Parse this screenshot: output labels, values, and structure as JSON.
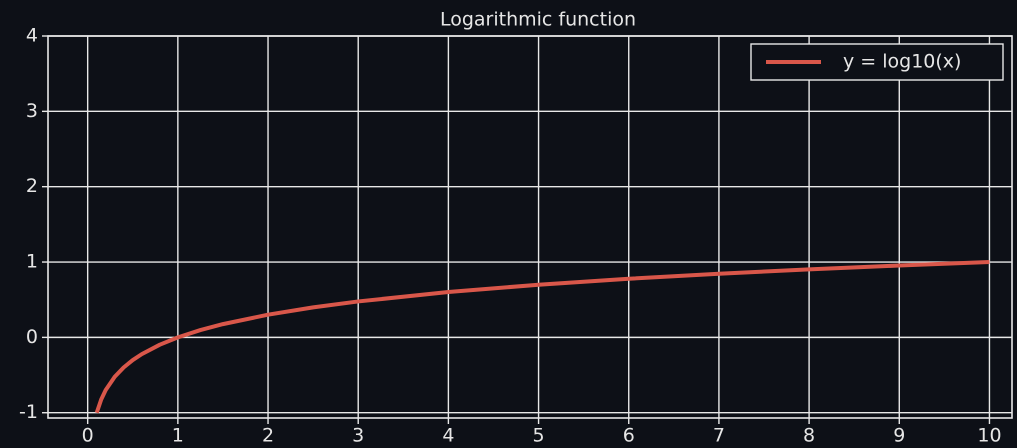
{
  "chart_data": {
    "type": "line",
    "title": "Logarithmic function",
    "x": [
      0.1,
      0.15,
      0.2,
      0.3,
      0.4,
      0.5,
      0.6,
      0.8,
      1,
      1.25,
      1.5,
      2,
      2.5,
      3,
      4,
      5,
      6,
      7,
      8,
      9,
      10
    ],
    "series": [
      {
        "name": "y = log10(x)",
        "color": "#d9574a",
        "values": [
          -1,
          -0.824,
          -0.699,
          -0.523,
          -0.398,
          -0.301,
          -0.222,
          -0.097,
          0,
          0.097,
          0.176,
          0.301,
          0.398,
          0.477,
          0.602,
          0.699,
          0.778,
          0.845,
          0.903,
          0.954,
          1
        ]
      }
    ],
    "xlim": [
      -0.44,
      10.25
    ],
    "xticks": [
      0,
      1,
      2,
      3,
      4,
      5,
      6,
      7,
      8,
      9,
      10
    ],
    "ylim": [
      -1.07,
      4
    ],
    "yticks": [
      -1,
      0,
      1,
      2,
      3,
      4
    ],
    "grid": true,
    "legend": "upper right"
  }
}
